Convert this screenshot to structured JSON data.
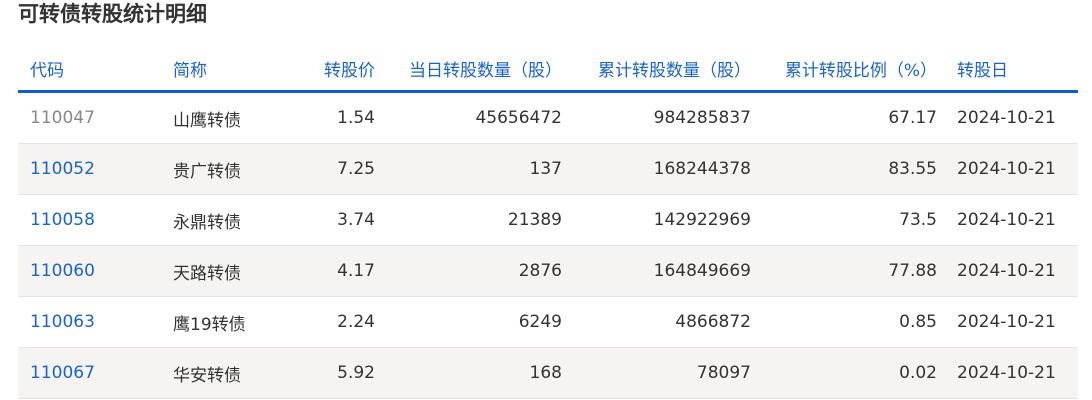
{
  "title": "可转债转股统计明细",
  "columns": [
    "代码",
    "简称",
    "转股价",
    "当日转股数量（股）",
    "累计转股数量（股）",
    "累计转股比例（%）",
    "转股日"
  ],
  "rows": [
    {
      "code": "110047",
      "name": "山鹰转债",
      "price": "1.54",
      "daily": "45656472",
      "total": "984285837",
      "ratio": "67.17",
      "date": "2024-10-21",
      "visited": true
    },
    {
      "code": "110052",
      "name": "贵广转债",
      "price": "7.25",
      "daily": "137",
      "total": "168244378",
      "ratio": "83.55",
      "date": "2024-10-21"
    },
    {
      "code": "110058",
      "name": "永鼎转债",
      "price": "3.74",
      "daily": "21389",
      "total": "142922969",
      "ratio": "73.5",
      "date": "2024-10-21"
    },
    {
      "code": "110060",
      "name": "天路转债",
      "price": "4.17",
      "daily": "2876",
      "total": "164849669",
      "ratio": "77.88",
      "date": "2024-10-21"
    },
    {
      "code": "110063",
      "name": "鹰19转债",
      "price": "2.24",
      "daily": "6249",
      "total": "4866872",
      "ratio": "0.85",
      "date": "2024-10-21"
    },
    {
      "code": "110067",
      "name": "华安转债",
      "price": "5.92",
      "daily": "168",
      "total": "78097",
      "ratio": "0.02",
      "date": "2024-10-21"
    }
  ],
  "colors": {
    "link": "#1a64c8",
    "visited_link": "#888888",
    "header_border": "#0a5fc8",
    "stripe": "#f5f4f3"
  }
}
